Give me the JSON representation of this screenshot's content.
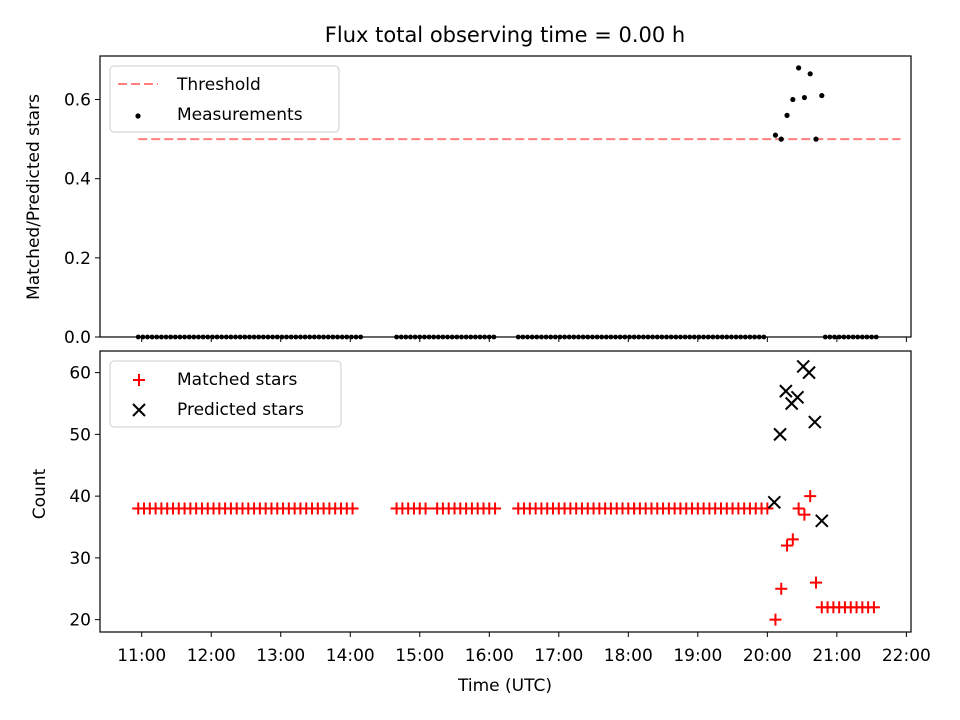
{
  "chart_data": {
    "title": "Flux total observing time = 0.00 h",
    "xlabel": "Time (UTC)",
    "xlim": [
      "10:24",
      "22:04"
    ],
    "xticks": [
      "11:00",
      "12:00",
      "13:00",
      "14:00",
      "15:00",
      "16:00",
      "17:00",
      "18:00",
      "19:00",
      "20:00",
      "21:00",
      "22:00"
    ],
    "panels": [
      {
        "type": "scatter",
        "ylabel": "Matched/Predicted stars",
        "ylim": [
          0,
          0.71
        ],
        "yticks": [
          "0.0",
          "0.2",
          "0.4",
          "0.6"
        ],
        "legend_placement": "upper-left",
        "series": [
          {
            "name": "Threshold",
            "kind": "dashed-line",
            "color": "#ff7f7f",
            "x": [
              "10:57",
              "21:55"
            ],
            "y": [
              0.5,
              0.5
            ]
          },
          {
            "name": "Measurements",
            "kind": "points",
            "color": "#000000",
            "points_near_zero": {
              "y": 0,
              "x_ranges": [
                [
                  "10:57",
                  "14:10"
                ],
                [
                  "14:40",
                  "16:05"
                ],
                [
                  "16:25",
                  "20:00"
                ],
                [
                  "20:50",
                  "21:35"
                ]
              ]
            },
            "x": [
              "20:07",
              "20:12",
              "20:17",
              "20:22",
              "20:27",
              "20:32",
              "20:37",
              "20:42",
              "20:47"
            ],
            "y": [
              0.51,
              0.5,
              0.56,
              0.6,
              0.68,
              0.605,
              0.665,
              0.5,
              0.61
            ]
          }
        ]
      },
      {
        "type": "scatter",
        "ylabel": "Count",
        "ylim": [
          18,
          63.5
        ],
        "yticks": [
          "20",
          "30",
          "40",
          "50",
          "60"
        ],
        "legend_placement": "upper-left",
        "series": [
          {
            "name": "Matched stars",
            "marker": "+",
            "color": "#ff0000",
            "segments": [
              {
                "from": "10:57",
                "to": "14:05",
                "y": 38
              },
              {
                "from": "14:40",
                "to": "15:05",
                "y": 38
              },
              {
                "from": "15:15",
                "to": "16:05",
                "y": 38
              },
              {
                "from": "16:25",
                "to": "17:10",
                "y": 38
              },
              {
                "from": "17:15",
                "to": "18:05",
                "y": 38
              },
              {
                "from": "18:05",
                "to": "18:45",
                "y": 38
              },
              {
                "from": "18:45",
                "to": "20:00",
                "y": 38
              },
              {
                "from": "20:47",
                "to": "21:35",
                "y": 22
              }
            ],
            "x": [
              "20:07",
              "20:12",
              "20:17",
              "20:22",
              "20:27",
              "20:32",
              "20:37",
              "20:42"
            ],
            "y": [
              20,
              25,
              32,
              33,
              38,
              37,
              40,
              26
            ]
          },
          {
            "name": "Predicted stars",
            "marker": "x",
            "color": "#000000",
            "x": [
              "20:06",
              "20:11",
              "20:16",
              "20:21",
              "20:26",
              "20:31",
              "20:36",
              "20:41",
              "20:47"
            ],
            "y": [
              39,
              50,
              57,
              55,
              56,
              61,
              60,
              52,
              36
            ]
          }
        ]
      }
    ]
  }
}
